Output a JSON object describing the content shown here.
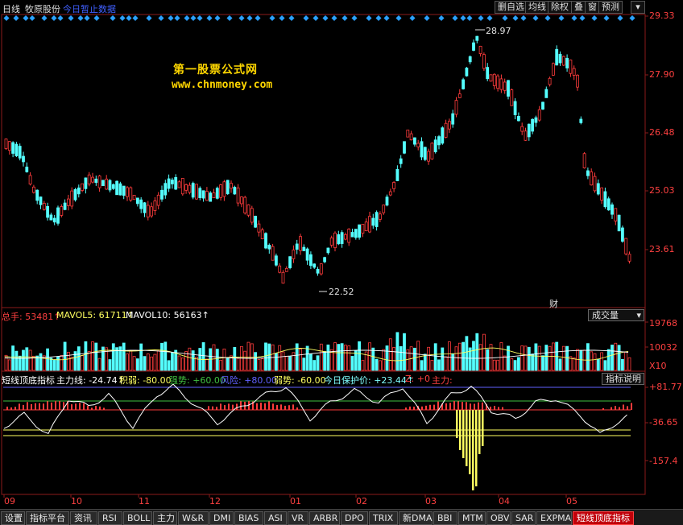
{
  "topbar": {
    "period": "日线",
    "stock_name": "牧原股份",
    "status": "今日暂止数据",
    "buttons": [
      "删自选",
      "均线",
      "除权",
      "叠",
      "窗",
      "预测"
    ]
  },
  "watermark": {
    "line1": "第一股票公式网",
    "line2": "www.chnmoney.com"
  },
  "price_panel": {
    "scale": [
      "29.33",
      "27.90",
      "26.48",
      "25.03",
      "23.61"
    ],
    "high_label": "28.97",
    "low_label": "22.52",
    "note": "财"
  },
  "volume_panel": {
    "legend": [
      {
        "text": "总手: 53481↑",
        "color": "#ff4040"
      },
      {
        "text": "MAVOL5: 61711↑",
        "color": "#ffff60"
      },
      {
        "text": "MAVOL10: 56163↑",
        "color": "#ffffff"
      }
    ],
    "dropdown": "成交量",
    "scale": [
      "19768",
      "10032",
      "X10"
    ]
  },
  "indicator_panel": {
    "legend": [
      {
        "text": "短线顶底指标",
        "color": "#ffffff"
      },
      {
        "text": "主力线: -24.74↑",
        "color": "#ffffff"
      },
      {
        "text": "积弱: -80.00",
        "color": "#ffff60"
      },
      {
        "text": "强势: +60.00",
        "color": "#40c040"
      },
      {
        "text": "风险: +80.00",
        "color": "#6060ff"
      },
      {
        "text": "弱势: -60.00",
        "color": "#ffff60"
      },
      {
        "text": "今日保护价: +23.44↑",
        "color": "#80ffff"
      },
      {
        "text": "Z: +0",
        "color": "#ff4040"
      },
      {
        "text": "主力:",
        "color": "#ff4040"
      }
    ],
    "help_button": "指标说明",
    "scale": [
      "+81.77",
      "-36.65",
      "-157.4"
    ]
  },
  "time_axis": [
    "09",
    "10",
    "11",
    "12",
    "01",
    "02",
    "03",
    "04",
    "05"
  ],
  "bottom_tabs": [
    "设置",
    "指标平台",
    "资讯",
    "RSI",
    "BOLL",
    "主力",
    "W&R",
    "DMI",
    "BIAS",
    "ASI",
    "VR",
    "ARBR",
    "DPO",
    "TRIX",
    "新DMA",
    "BBI",
    "MTM",
    "OBV",
    "SAR",
    "EXPMA",
    "短线顶底指标"
  ],
  "active_tab": "短线顶底指标",
  "colors": {
    "up": "#ff3c3c",
    "down": "#54ffff",
    "frame": "#8c1a1a",
    "marker": "#2aa0ff"
  }
}
